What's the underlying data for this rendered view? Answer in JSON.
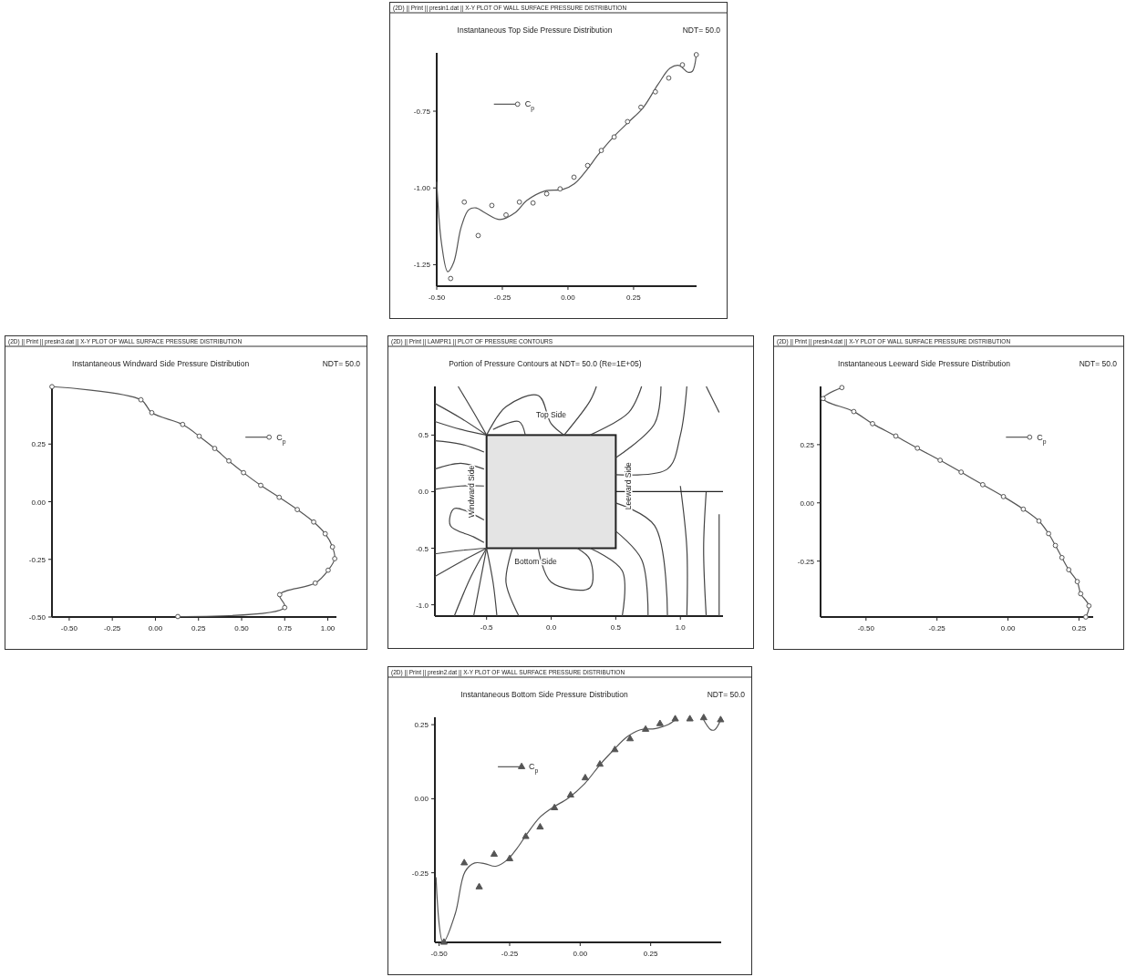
{
  "chart_data": [
    {
      "type": "line",
      "subtitle": "(2D) || Print || presin1.dat || X-Y PLOT OF WALL SURFACE PRESSURE DISTRIBUTION",
      "title": "Instantaneous Top Side Pressure Distribution",
      "annotations": [
        "NDT= 50.0"
      ],
      "legend": "top left",
      "line_style": "solid",
      "xlim": [
        -0.5,
        0.49
      ],
      "ylim": [
        -1.32,
        -0.56
      ],
      "xticks": [
        {
          "value": -0.5,
          "label": "-0.50"
        },
        {
          "value": -0.25,
          "label": "-0.25"
        },
        {
          "value": 0,
          "label": "0.00"
        },
        {
          "value": 0.25,
          "label": "0.25"
        }
      ],
      "yticks": [
        {
          "value": -0.75,
          "label": "-0.75"
        },
        {
          "value": -1,
          "label": "-1.00"
        },
        {
          "value": -1.25,
          "label": "-1.25"
        }
      ],
      "series": [
        {
          "type": "line",
          "color": "#555555",
          "x": [
            -0.5,
            -0.481,
            -0.458,
            -0.435,
            -0.407,
            -0.378,
            -0.35,
            -0.316,
            -0.259,
            -0.202,
            -0.157,
            -0.089,
            -0.02,
            0.025,
            0.07,
            0.116,
            0.173,
            0.23,
            0.286,
            0.343,
            0.389,
            0.423,
            0.457,
            0.474,
            0.489
          ],
          "values": [
            -0.98,
            -1.185,
            -1.273,
            -1.242,
            -1.128,
            -1.071,
            -1.065,
            -1.081,
            -1.103,
            -1.081,
            -1.041,
            -1.01,
            -1.005,
            -0.986,
            -0.943,
            -0.891,
            -0.834,
            -0.786,
            -0.739,
            -0.663,
            -0.61,
            -0.601,
            -0.623,
            -0.62,
            -0.566
          ]
        },
        {
          "type": "scatter",
          "name": "C$_{p}$",
          "color": "#555555",
          "marker": "circle",
          "x": [
            -0.447,
            -0.395,
            -0.342,
            -0.29,
            -0.236,
            -0.185,
            -0.133,
            -0.081,
            -0.03,
            0.023,
            0.075,
            0.127,
            0.176,
            0.227,
            0.278,
            0.333,
            0.384,
            0.436,
            0.489
          ],
          "values": [
            -1.295,
            -1.046,
            -1.155,
            -1.057,
            -1.088,
            -1.046,
            -1.049,
            -1.019,
            -1.003,
            -0.965,
            -0.927,
            -0.878,
            -0.834,
            -0.784,
            -0.737,
            -0.687,
            -0.642,
            -0.599,
            -0.566
          ]
        }
      ]
    },
    {
      "type": "line",
      "subtitle": "(2D) || Print || presin3.dat || X-Y PLOT OF WALL SURFACE PRESSURE DISTRIBUTION",
      "title": "Instantaneous Windward Side Pressure Distribution",
      "annotations": [
        "NDT= 50.0"
      ],
      "legend": "top right",
      "line_style": "solid",
      "xlim": [
        -0.6,
        1.05
      ],
      "ylim": [
        -0.5,
        0.5
      ],
      "xticks": [
        {
          "value": -0.5,
          "label": "-0.50"
        },
        {
          "value": -0.25,
          "label": "-0.25"
        },
        {
          "value": 0,
          "label": "0.00"
        },
        {
          "value": 0.25,
          "label": "0.25"
        },
        {
          "value": 0.5,
          "label": "0.50"
        },
        {
          "value": 0.75,
          "label": "0.75"
        },
        {
          "value": 1,
          "label": "1.00"
        }
      ],
      "yticks": [
        {
          "value": 0.25,
          "label": "0.25"
        },
        {
          "value": 0,
          "label": "0.00"
        },
        {
          "value": -0.25,
          "label": "-0.25"
        },
        {
          "value": -0.5,
          "label": "-0.50"
        }
      ],
      "series": [
        {
          "type": "line",
          "name": "C$_{p}$",
          "color": "#555555",
          "marker": "circle",
          "x": [
            -0.6,
            -0.084,
            -0.021,
            0.158,
            0.254,
            0.344,
            0.426,
            0.511,
            0.611,
            0.718,
            0.823,
            0.918,
            0.985,
            1.027,
            1.04,
            1.002,
            0.927,
            0.721,
            0.75,
            0.13
          ],
          "values": [
            0.499,
            0.442,
            0.386,
            0.335,
            0.284,
            0.231,
            0.177,
            0.126,
            0.071,
            0.019,
            -0.034,
            -0.088,
            -0.139,
            -0.196,
            -0.247,
            -0.297,
            -0.353,
            -0.403,
            -0.459,
            -0.498
          ]
        }
      ]
    },
    {
      "type": "line",
      "subtitle": "(2D) || Print || LAMPR1 || PLOT OF PRESSURE CONTOURS",
      "title": "Portion of Pressure Contours at  NDT= 50.0  (Re=1E+05)",
      "line_style": "solid",
      "series": [
        {
          "color": "#444444",
          "x": [
            -0.9,
            -0.7,
            -0.5
          ],
          "values": [
            0.62,
            0.55,
            0.5
          ]
        },
        {
          "color": "#444444",
          "x": [
            -0.9,
            -0.7,
            -0.5
          ],
          "values": [
            0.78,
            0.65,
            0.5
          ]
        },
        {
          "color": "#444444",
          "x": [
            -0.72,
            -0.6,
            -0.5
          ],
          "values": [
            0.93,
            0.7,
            0.5
          ]
        },
        {
          "color": "#444444",
          "x": [
            -0.9,
            -0.7,
            -0.52
          ],
          "values": [
            0.45,
            0.42,
            0.35
          ]
        },
        {
          "color": "#444444",
          "x": [
            -0.9,
            -0.7,
            -0.52
          ],
          "values": [
            0.2,
            0.25,
            0.2
          ]
        },
        {
          "color": "#444444",
          "x": [
            -0.9,
            -0.7,
            -0.52
          ],
          "values": [
            0.02,
            0.05,
            0.05
          ]
        },
        {
          "color": "#444444",
          "x": [
            -0.52,
            -0.75,
            -0.78,
            -0.6,
            -0.52
          ],
          "values": [
            -0.25,
            -0.15,
            -0.3,
            -0.4,
            -0.45
          ]
        },
        {
          "color": "#444444",
          "x": [
            -0.9,
            -0.7,
            -0.5
          ],
          "values": [
            -0.55,
            -0.52,
            -0.5
          ]
        },
        {
          "color": "#444444",
          "x": [
            -0.9,
            -0.7,
            -0.5
          ],
          "values": [
            -0.75,
            -0.62,
            -0.5
          ]
        },
        {
          "color": "#444444",
          "x": [
            -0.75,
            -0.62,
            -0.5
          ],
          "values": [
            -1.1,
            -0.75,
            -0.5
          ]
        },
        {
          "color": "#444444",
          "x": [
            -0.6,
            -0.55,
            -0.5
          ],
          "values": [
            -1.1,
            -0.8,
            -0.5
          ]
        },
        {
          "color": "#444444",
          "x": [
            -0.42,
            -0.45,
            -0.5
          ],
          "values": [
            -1.1,
            -0.8,
            -0.5
          ]
        },
        {
          "color": "#444444",
          "x": [
            -0.5,
            -0.35,
            -0.1,
            0.0,
            0.1
          ],
          "values": [
            0.5,
            0.75,
            0.85,
            0.6,
            0.5
          ]
        },
        {
          "color": "#444444",
          "x": [
            -0.45,
            -0.25,
            -0.2
          ],
          "values": [
            0.55,
            0.62,
            0.5
          ]
        },
        {
          "color": "#444444",
          "x": [
            0.1,
            0.3,
            0.35
          ],
          "values": [
            0.5,
            0.8,
            0.93
          ]
        },
        {
          "color": "#444444",
          "x": [
            0.3,
            0.6,
            0.7
          ],
          "values": [
            0.5,
            0.7,
            0.93
          ]
        },
        {
          "color": "#444444",
          "x": [
            0.5,
            0.8,
            0.85
          ],
          "values": [
            0.3,
            0.6,
            0.93
          ]
        },
        {
          "color": "#444444",
          "x": [
            0.5,
            0.9,
            1.0,
            1.05
          ],
          "values": [
            0.15,
            0.2,
            0.5,
            0.93
          ]
        },
        {
          "color": "#444444",
          "x": [
            1.2,
            1.3
          ],
          "values": [
            0.93,
            0.7
          ]
        },
        {
          "color": "#444444",
          "x": [
            0.5,
            0.8,
            0.9
          ],
          "values": [
            -0.1,
            -0.3,
            -1.1
          ]
        },
        {
          "color": "#444444",
          "x": [
            0.5,
            0.7,
            0.75
          ],
          "values": [
            -0.35,
            -0.6,
            -1.1
          ]
        },
        {
          "color": "#444444",
          "x": [
            1.0,
            1.05,
            1.05
          ],
          "values": [
            0.05,
            -0.5,
            -1.1
          ]
        },
        {
          "color": "#444444",
          "x": [
            1.2,
            1.18,
            1.2
          ],
          "values": [
            0.0,
            -0.5,
            -1.1
          ]
        },
        {
          "color": "#444444",
          "x": [
            1.3,
            1.3
          ],
          "values": [
            -0.2,
            -1.1
          ]
        },
        {
          "color": "#444444",
          "x": [
            -0.3,
            -0.35,
            -0.25
          ],
          "values": [
            -0.5,
            -0.8,
            -1.1
          ]
        },
        {
          "color": "#444444",
          "x": [
            -0.1,
            0.0,
            0.3,
            0.3,
            0.2
          ],
          "values": [
            -0.5,
            -0.8,
            -0.85,
            -0.6,
            -0.5
          ]
        },
        {
          "color": "#444444",
          "x": [
            0.3,
            0.55,
            0.55
          ],
          "values": [
            -0.5,
            -0.7,
            -1.1
          ]
        },
        {
          "color": "#222222",
          "x": [
            0.5,
            1.33
          ],
          "values": [
            0,
            0
          ]
        }
      ],
      "annotations": [
        "Top Side",
        "Bottom Side",
        "Windward Side",
        "Leeward Side"
      ],
      "xlim": [
        -0.9,
        1.33
      ],
      "ylim": [
        -1.1,
        0.93
      ],
      "xticks": [
        {
          "value": -0.5,
          "label": "-0.5"
        },
        {
          "value": 0,
          "label": "0.0"
        },
        {
          "value": 0.5,
          "label": "0.5"
        },
        {
          "value": 1,
          "label": "1.0"
        }
      ],
      "yticks": [
        {
          "value": 0.5,
          "label": "0.5"
        },
        {
          "value": 0,
          "label": "0.0"
        },
        {
          "value": -0.5,
          "label": "-0.5"
        },
        {
          "value": -1,
          "label": "-1.0"
        }
      ]
    },
    {
      "type": "line",
      "subtitle": "(2D) || Print || presin4.dat || X-Y PLOT OF WALL SURFACE PRESSURE DISTRIBUTION",
      "title": "Instantaneous Leeward Side Pressure Distribution",
      "annotations": [
        "NDT= 50.0"
      ],
      "legend": "top right",
      "line_style": "solid",
      "xlim": [
        -0.66,
        0.3
      ],
      "ylim": [
        -0.49,
        0.5
      ],
      "xticks": [
        {
          "value": -0.5,
          "label": "-0.50"
        },
        {
          "value": -0.25,
          "label": "-0.25"
        },
        {
          "value": 0,
          "label": "0.00"
        },
        {
          "value": 0.25,
          "label": "0.25"
        }
      ],
      "yticks": [
        {
          "value": 0.25,
          "label": "0.25"
        },
        {
          "value": 0,
          "label": "0.00"
        },
        {
          "value": -0.25,
          "label": "-0.25"
        }
      ],
      "series": [
        {
          "type": "line",
          "name": "C$_{p}$",
          "color": "#555555",
          "marker": "circle",
          "x": [
            -0.585,
            -0.651,
            -0.543,
            -0.477,
            -0.395,
            -0.319,
            -0.239,
            -0.165,
            -0.089,
            -0.016,
            0.054,
            0.109,
            0.143,
            0.167,
            0.19,
            0.214,
            0.244,
            0.256,
            0.285,
            0.274
          ],
          "values": [
            0.495,
            0.448,
            0.392,
            0.34,
            0.287,
            0.235,
            0.183,
            0.132,
            0.078,
            0.027,
            -0.027,
            -0.078,
            -0.132,
            -0.183,
            -0.235,
            -0.287,
            -0.338,
            -0.39,
            -0.442,
            -0.49
          ]
        }
      ]
    },
    {
      "type": "line",
      "subtitle": "(2D) || Print || presin2.dat || X-Y PLOT OF WALL SURFACE PRESSURE DISTRIBUTION",
      "title": "Instantaneous Bottom Side Pressure Distribution",
      "annotations": [
        "NDT= 50.0"
      ],
      "legend": "top left",
      "line_style": "solid",
      "xlim": [
        -0.515,
        0.5
      ],
      "ylim": [
        -0.485,
        0.275
      ],
      "xticks": [
        {
          "value": -0.5,
          "label": "-0.50"
        },
        {
          "value": -0.25,
          "label": "-0.25"
        },
        {
          "value": 0,
          "label": "0.00"
        },
        {
          "value": 0.25,
          "label": "0.25"
        }
      ],
      "yticks": [
        {
          "value": 0.25,
          "label": "0.25"
        },
        {
          "value": 0,
          "label": "0.00"
        },
        {
          "value": -0.25,
          "label": "-0.25"
        }
      ],
      "series": [
        {
          "type": "line",
          "color": "#555555",
          "x": [
            -0.511,
            -0.486,
            -0.443,
            -0.408,
            -0.374,
            -0.339,
            -0.299,
            -0.259,
            -0.225,
            -0.19,
            -0.144,
            -0.099,
            -0.041,
            0.016,
            0.073,
            0.119,
            0.165,
            0.211,
            0.268,
            0.314,
            0.343,
            0.39,
            0.435,
            0.463,
            0.477,
            0.498
          ],
          "values": [
            -0.265,
            -0.485,
            -0.389,
            -0.246,
            -0.217,
            -0.219,
            -0.228,
            -0.207,
            -0.169,
            -0.121,
            -0.064,
            -0.031,
            0.003,
            0.051,
            0.118,
            0.165,
            0.208,
            0.232,
            0.237,
            0.251,
            0.271,
            null,
            0.271,
            0.233,
            0.233,
            0.266
          ]
        },
        {
          "type": "scatter",
          "name": "C$_{p}$",
          "color": "#555555",
          "marker": "triangle",
          "x": [
            -0.483,
            -0.411,
            -0.358,
            -0.305,
            -0.25,
            -0.193,
            -0.142,
            -0.091,
            -0.034,
            0.018,
            0.07,
            0.123,
            0.177,
            0.232,
            0.283,
            0.337,
            0.389,
            0.438,
            0.498
          ],
          "values": [
            -0.485,
            -0.217,
            -0.298,
            -0.188,
            -0.203,
            -0.128,
            -0.096,
            -0.031,
            0.012,
            0.07,
            0.116,
            0.165,
            0.202,
            0.234,
            0.253,
            0.269,
            0.269,
            0.273,
            0.266
          ]
        }
      ]
    }
  ]
}
